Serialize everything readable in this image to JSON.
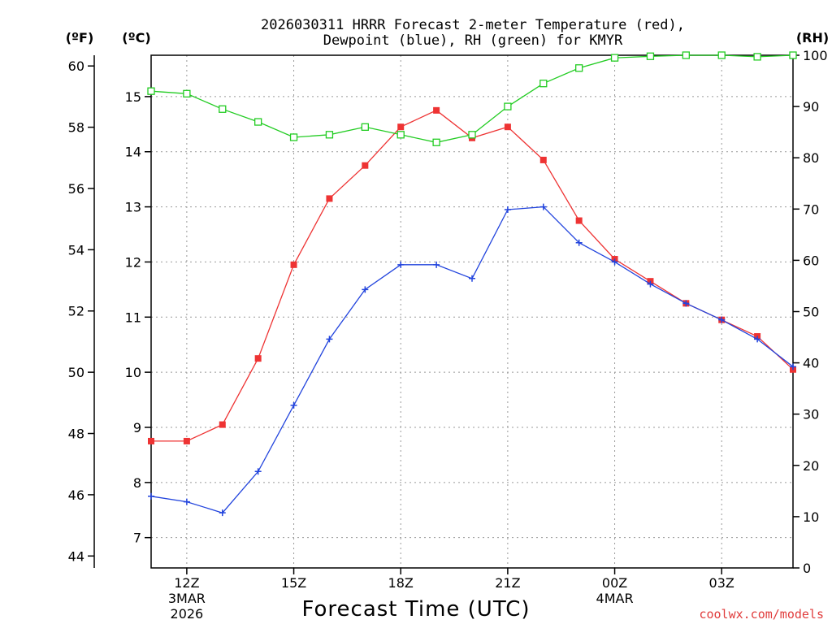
{
  "chart_data": {
    "type": "line",
    "title": [
      "2026030311 HRRR Forecast 2-meter Temperature (red),",
      "Dewpoint (blue), RH (green) for KMYR"
    ],
    "xlabel": "Forecast Time (UTC)",
    "unit_labels": {
      "fahrenheit": "(ºF)",
      "celsius": "(ºC)",
      "rh": "(RH)"
    },
    "x": [
      11,
      12,
      13,
      14,
      15,
      16,
      17,
      18,
      19,
      20,
      21,
      22,
      23,
      24,
      25,
      26,
      27,
      28,
      29
    ],
    "x_ticks": [
      {
        "x": 12,
        "label": "12Z",
        "sub": [
          "3MAR",
          "2026"
        ]
      },
      {
        "x": 15,
        "label": "15Z",
        "sub": []
      },
      {
        "x": 18,
        "label": "18Z",
        "sub": []
      },
      {
        "x": 21,
        "label": "21Z",
        "sub": []
      },
      {
        "x": 24,
        "label": "00Z",
        "sub": [
          "4MAR"
        ]
      },
      {
        "x": 27,
        "label": "03Z",
        "sub": []
      }
    ],
    "xlim": [
      11,
      29
    ],
    "celsius_lim": [
      6.45,
      15.75
    ],
    "celsius_ticks": [
      7,
      8,
      9,
      10,
      11,
      12,
      13,
      14,
      15
    ],
    "fahrenheit_ticks": [
      44,
      46,
      48,
      50,
      52,
      54,
      56,
      58,
      60
    ],
    "rh_lim": [
      0,
      100
    ],
    "rh_ticks": [
      0,
      10,
      20,
      30,
      40,
      50,
      60,
      70,
      80,
      90,
      100
    ],
    "series": [
      {
        "name": "Temperature",
        "axis": "celsius",
        "color": "#ee3333",
        "marker": "filled-square",
        "values": [
          8.75,
          8.75,
          9.05,
          10.25,
          11.95,
          13.15,
          13.75,
          14.45,
          14.75,
          14.25,
          14.45,
          13.85,
          12.75,
          12.05,
          11.65,
          11.25,
          10.95,
          10.65,
          10.05
        ]
      },
      {
        "name": "Dewpoint",
        "axis": "celsius",
        "color": "#2244dd",
        "marker": "plus",
        "values": [
          7.75,
          7.65,
          7.45,
          8.2,
          9.4,
          10.6,
          11.5,
          11.95,
          11.95,
          11.7,
          12.95,
          13.0,
          12.35,
          12.0,
          11.6,
          11.25,
          10.95,
          10.6,
          10.1
        ]
      },
      {
        "name": "RH",
        "axis": "rh",
        "color": "#22cc22",
        "marker": "open-square",
        "values": [
          93,
          92.5,
          89.5,
          87,
          84,
          84.5,
          86,
          84.5,
          83,
          84.5,
          90,
          94.5,
          97.5,
          99.5,
          99.8,
          100,
          100,
          99.7,
          100
        ]
      }
    ],
    "grid": true
  },
  "credit": "coolwx.com/models"
}
